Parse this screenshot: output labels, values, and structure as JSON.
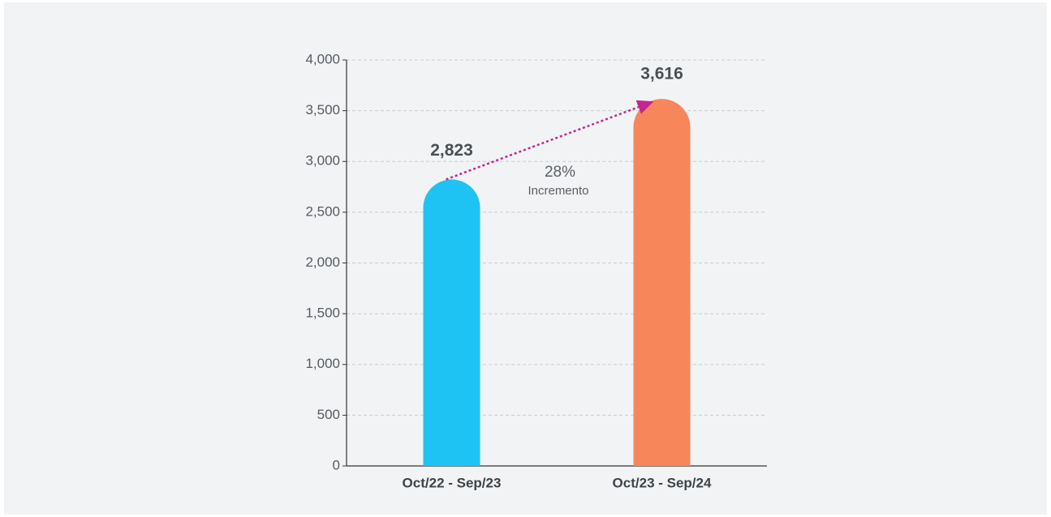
{
  "chart_data": {
    "type": "bar",
    "categories": [
      "Oct/22 - Sep/23",
      "Oct/23 - Sep/24"
    ],
    "values": [
      2823,
      3616
    ],
    "value_labels": [
      "2,823",
      "3,616"
    ],
    "colors": [
      "#1fc3f3",
      "#f7875a"
    ],
    "ylim": [
      0,
      4000
    ],
    "yticks": [
      0,
      500,
      {
        "value": 1000,
        "label": "1,000"
      },
      {
        "value": 1500,
        "label": "1,500"
      },
      {
        "value": 2000,
        "label": "2,000"
      },
      {
        "value": 2500,
        "label": "2,500"
      },
      {
        "value": 3000,
        "label": "3,000"
      },
      {
        "value": 3500,
        "label": "3,500"
      },
      {
        "value": 4000,
        "label": "4,000"
      }
    ],
    "grid": true,
    "annotation": {
      "value_text": "28%",
      "text": "Incremento",
      "color": "#c2278f"
    }
  }
}
